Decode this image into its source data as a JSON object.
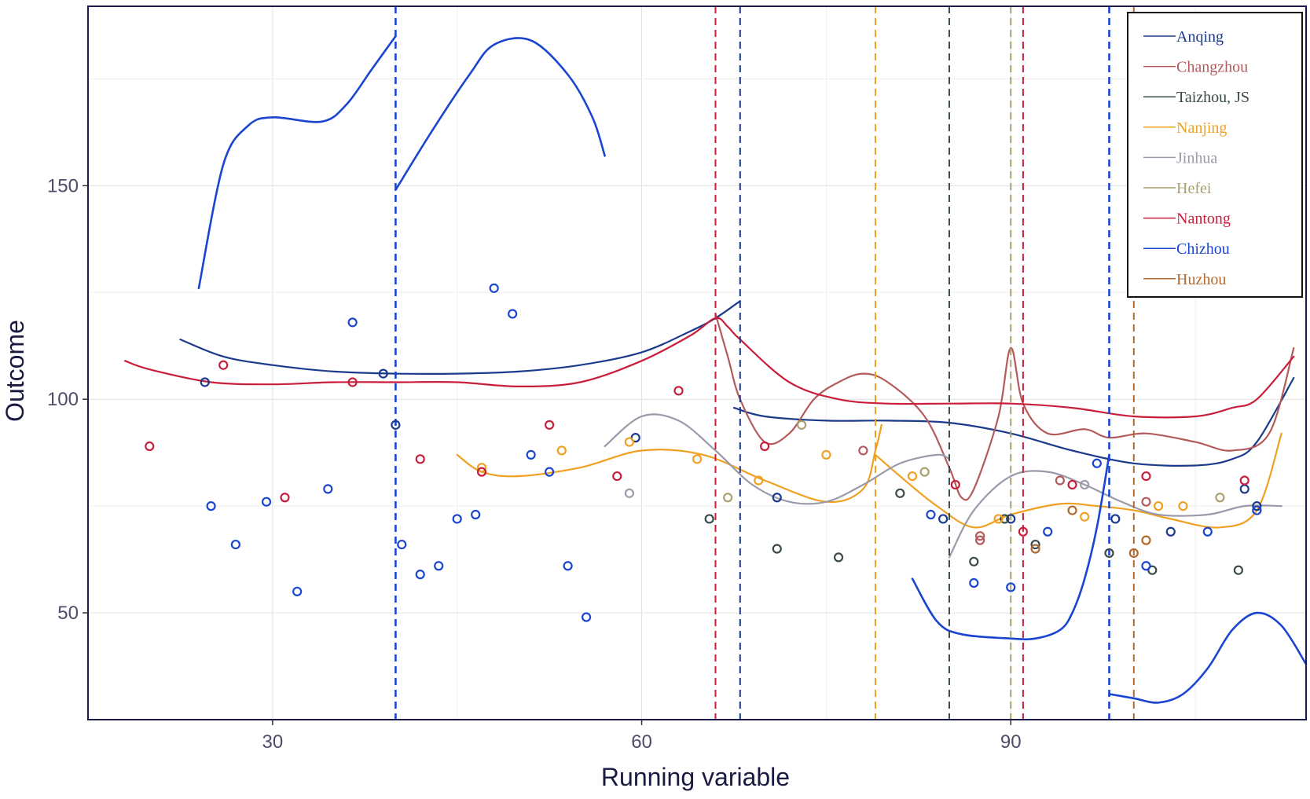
{
  "chart_data": {
    "type": "scatter",
    "title": "",
    "xlabel": "Running variable",
    "ylabel": "Outcome",
    "xlim": [
      15,
      114
    ],
    "ylim": [
      25,
      192
    ],
    "x_ticks": [
      30,
      60,
      90
    ],
    "y_ticks": [
      50,
      100,
      150
    ],
    "grid": true,
    "legend_position": "top-right",
    "series": [
      {
        "name": "Anqing",
        "color": "#1a3a8c",
        "lines": [
          [
            [
              22.5,
              114
            ],
            [
              26,
              110
            ],
            [
              30,
              108
            ],
            [
              35,
              106.5
            ],
            [
              40,
              106
            ],
            [
              45,
              106
            ],
            [
              50,
              106.5
            ],
            [
              55,
              108
            ],
            [
              60,
              111
            ],
            [
              64,
              116
            ],
            [
              66,
              119
            ],
            [
              68,
              123
            ]
          ],
          [
            [
              67.5,
              98
            ],
            [
              70,
              96
            ],
            [
              75,
              95
            ],
            [
              80,
              95
            ],
            [
              85,
              94.5
            ],
            [
              90,
              92
            ],
            [
              95,
              88
            ],
            [
              100,
              85
            ],
            [
              105,
              84.5
            ],
            [
              108,
              86
            ],
            [
              110,
              90
            ],
            [
              113,
              105
            ]
          ]
        ],
        "cutoffs": [
          68
        ],
        "points": [
          [
            24.5,
            104
          ],
          [
            39,
            106
          ],
          [
            40,
            94
          ],
          [
            59.5,
            91
          ],
          [
            71,
            77
          ],
          [
            84.5,
            72
          ],
          [
            90,
            72
          ],
          [
            98.5,
            72
          ],
          [
            103,
            69
          ],
          [
            109,
            79
          ],
          [
            110,
            75
          ]
        ]
      },
      {
        "name": "Changzhou",
        "color": "#b35a5a",
        "lines": [
          [
            [
              66,
              120
            ],
            [
              67,
              110
            ],
            [
              68,
              100
            ],
            [
              70,
              90
            ],
            [
              72,
              92
            ],
            [
              74,
              100
            ],
            [
              76,
              104
            ],
            [
              78,
              106
            ],
            [
              80,
              104
            ],
            [
              83,
              96
            ],
            [
              85,
              84
            ],
            [
              86,
              77
            ],
            [
              87,
              79
            ],
            [
              89,
              96
            ],
            [
              90,
              112
            ],
            [
              91,
              99
            ],
            [
              93,
              92
            ],
            [
              96,
              93
            ],
            [
              98,
              91
            ],
            [
              101,
              92
            ],
            [
              105,
              90
            ],
            [
              108,
              88
            ],
            [
              111,
              92
            ],
            [
              113,
              112
            ]
          ]
        ],
        "cutoffs": [],
        "points": [
          [
            78,
            88
          ],
          [
            87.5,
            67
          ],
          [
            87.5,
            68
          ],
          [
            94,
            81
          ],
          [
            101,
            76
          ]
        ]
      },
      {
        "name": "Taizhou, JS",
        "color": "#3a4a4a",
        "lines": [],
        "cutoffs": [
          85
        ],
        "points": [
          [
            65.5,
            72
          ],
          [
            71,
            65
          ],
          [
            76,
            63
          ],
          [
            81,
            78
          ],
          [
            87,
            62
          ],
          [
            89.5,
            72
          ],
          [
            92,
            66
          ],
          [
            98,
            64
          ],
          [
            101.5,
            60
          ],
          [
            108.5,
            60
          ]
        ]
      },
      {
        "name": "Nanjing",
        "color": "#f0a020",
        "lines": [
          [
            [
              45,
              87
            ],
            [
              47,
              83
            ],
            [
              50,
              82
            ],
            [
              55,
              84
            ],
            [
              60,
              88
            ],
            [
              65,
              87
            ],
            [
              70,
              81
            ],
            [
              75,
              76
            ],
            [
              78,
              79
            ],
            [
              79,
              88
            ],
            [
              79.5,
              94
            ]
          ],
          [
            [
              79,
              87
            ],
            [
              81,
              82
            ],
            [
              84,
              75
            ],
            [
              87,
              70
            ],
            [
              90,
              73
            ],
            [
              94,
              75.5
            ],
            [
              97,
              75
            ],
            [
              100,
              74
            ],
            [
              103,
              72
            ],
            [
              107,
              70
            ],
            [
              110,
              74
            ],
            [
              112,
              92
            ]
          ]
        ],
        "cutoffs": [
          79
        ],
        "points": [
          [
            47,
            84
          ],
          [
            53.5,
            88
          ],
          [
            59,
            90
          ],
          [
            64.5,
            86
          ],
          [
            69.5,
            81
          ],
          [
            75,
            87
          ],
          [
            82,
            82
          ],
          [
            89,
            72
          ],
          [
            96,
            72.5
          ],
          [
            102,
            75
          ],
          [
            104,
            75
          ]
        ]
      },
      {
        "name": "Jinhua",
        "color": "#9a9aaa",
        "lines": [
          [
            [
              57,
              89
            ],
            [
              60,
              96
            ],
            [
              63,
              95
            ],
            [
              66,
              88
            ],
            [
              69,
              80
            ],
            [
              72,
              76
            ],
            [
              75,
              76
            ],
            [
              78,
              80
            ],
            [
              81,
              85
            ],
            [
              84,
              87
            ],
            [
              85,
              86
            ]
          ],
          [
            [
              85,
              63
            ],
            [
              87,
              74
            ],
            [
              90,
              82
            ],
            [
              93,
              83
            ],
            [
              96,
              80
            ],
            [
              99,
              76
            ],
            [
              102,
              73
            ],
            [
              106,
              73
            ],
            [
              109,
              75
            ],
            [
              112,
              75
            ]
          ]
        ],
        "cutoffs": [],
        "points": [
          [
            59,
            78
          ],
          [
            96,
            80
          ]
        ]
      },
      {
        "name": "Hefei",
        "color": "#aaa070",
        "lines": [],
        "cutoffs": [
          90
        ],
        "points": [
          [
            67,
            77
          ],
          [
            73,
            94
          ],
          [
            83,
            83
          ],
          [
            107,
            77
          ],
          [
            110,
            74
          ]
        ]
      },
      {
        "name": "Nantong",
        "color": "#c81e3c",
        "lines": [
          [
            [
              18,
              109
            ],
            [
              20,
              107
            ],
            [
              25,
              104
            ],
            [
              30,
              103.5
            ],
            [
              35,
              104
            ],
            [
              40,
              104
            ],
            [
              45,
              104
            ],
            [
              50,
              103
            ],
            [
              55,
              104
            ],
            [
              60,
              109
            ],
            [
              64,
              115
            ],
            [
              66,
              119
            ],
            [
              67,
              117
            ],
            [
              68,
              114
            ],
            [
              72,
              104
            ],
            [
              76,
              100
            ],
            [
              80,
              99
            ],
            [
              85,
              99
            ],
            [
              90,
              99
            ],
            [
              95,
              98
            ],
            [
              100,
              96
            ],
            [
              105,
              96
            ],
            [
              108,
              98
            ],
            [
              110,
              100
            ],
            [
              113,
              110
            ]
          ]
        ],
        "cutoffs": [
          66,
          91
        ],
        "points": [
          [
            20,
            89
          ],
          [
            26,
            108
          ],
          [
            31,
            77
          ],
          [
            36.5,
            104
          ],
          [
            42,
            86
          ],
          [
            47,
            83
          ],
          [
            52.5,
            94
          ],
          [
            58,
            82
          ],
          [
            63,
            102
          ],
          [
            70,
            89
          ],
          [
            85.5,
            80
          ],
          [
            91,
            69
          ],
          [
            95,
            80
          ],
          [
            101,
            82
          ],
          [
            109,
            81
          ]
        ]
      },
      {
        "name": "Chizhou",
        "color": "#1a45d0",
        "lines": [
          [
            [
              24,
              126
            ],
            [
              26,
              155
            ],
            [
              28,
              164
            ],
            [
              30,
              166
            ],
            [
              34,
              165
            ],
            [
              36,
              169
            ],
            [
              38,
              177
            ],
            [
              40,
              185
            ]
          ],
          [
            [
              40,
              149
            ],
            [
              43,
              163
            ],
            [
              46,
              176
            ],
            [
              48,
              183
            ],
            [
              51,
              184
            ],
            [
              54,
              176
            ],
            [
              56,
              166
            ],
            [
              57,
              157
            ]
          ],
          [
            [
              82,
              58
            ],
            [
              84,
              48
            ],
            [
              86,
              45
            ],
            [
              90,
              44
            ],
            [
              92,
              44
            ],
            [
              94,
              46
            ],
            [
              95,
              50
            ],
            [
              96,
              58
            ],
            [
              97,
              70
            ],
            [
              98,
              87
            ]
          ],
          [
            [
              98,
              31
            ],
            [
              100,
              30
            ],
            [
              102,
              29
            ],
            [
              104,
              31
            ],
            [
              106,
              37
            ],
            [
              108,
              46
            ],
            [
              110,
              50
            ],
            [
              112,
              47
            ],
            [
              114,
              38
            ]
          ]
        ],
        "cutoffs": [
          40,
          98
        ],
        "points": [
          [
            25,
            75
          ],
          [
            27,
            66
          ],
          [
            29.5,
            76
          ],
          [
            32,
            55
          ],
          [
            34.5,
            79
          ],
          [
            36.5,
            118
          ],
          [
            40.5,
            66
          ],
          [
            42,
            59
          ],
          [
            43.5,
            61
          ],
          [
            45,
            72
          ],
          [
            46.5,
            73
          ],
          [
            48,
            126
          ],
          [
            49.5,
            120
          ],
          [
            51,
            87
          ],
          [
            52.5,
            83
          ],
          [
            54,
            61
          ],
          [
            55.5,
            49
          ],
          [
            83.5,
            73
          ],
          [
            87,
            57
          ],
          [
            90,
            56
          ],
          [
            93,
            69
          ],
          [
            97,
            85
          ],
          [
            101,
            61
          ],
          [
            106,
            69
          ],
          [
            110,
            74
          ]
        ]
      },
      {
        "name": "Huzhou",
        "color": "#b06a30",
        "lines": [],
        "cutoffs": [
          100
        ],
        "points": [
          [
            92,
            65
          ],
          [
            95,
            74
          ],
          [
            100,
            64
          ],
          [
            101,
            67
          ]
        ]
      }
    ]
  }
}
